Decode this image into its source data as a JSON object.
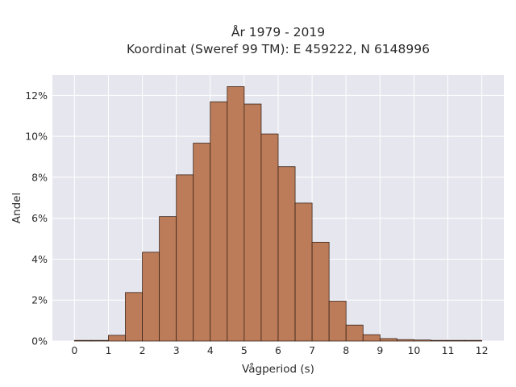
{
  "chart_data": {
    "type": "bar",
    "title_lines": [
      "År 1979 - 2019",
      "Koordinat (Sweref 99 TM): E 459222, N 6148996"
    ],
    "xlabel": "Vågperiod (s)",
    "ylabel": "Andel",
    "x_ticks": [
      "0",
      "1",
      "2",
      "3",
      "4",
      "5",
      "6",
      "7",
      "8",
      "9",
      "10",
      "11",
      "12"
    ],
    "y_ticks": [
      "0%",
      "2%",
      "4%",
      "6%",
      "8%",
      "10%",
      "12%"
    ],
    "xlim": [
      -0.65,
      12.65
    ],
    "ylim": [
      0,
      0.13
    ],
    "bin_width": 0.5,
    "bins": [
      {
        "x_start": 0.0,
        "value": 0.0003
      },
      {
        "x_start": 0.5,
        "value": 0.0
      },
      {
        "x_start": 1.0,
        "value": 0.0028
      },
      {
        "x_start": 1.5,
        "value": 0.0237
      },
      {
        "x_start": 2.0,
        "value": 0.0434
      },
      {
        "x_start": 2.5,
        "value": 0.0608
      },
      {
        "x_start": 3.0,
        "value": 0.0812
      },
      {
        "x_start": 3.5,
        "value": 0.0967
      },
      {
        "x_start": 4.0,
        "value": 0.1169
      },
      {
        "x_start": 4.5,
        "value": 0.1243
      },
      {
        "x_start": 5.0,
        "value": 0.1158
      },
      {
        "x_start": 5.5,
        "value": 0.1012
      },
      {
        "x_start": 6.0,
        "value": 0.0852
      },
      {
        "x_start": 6.5,
        "value": 0.0674
      },
      {
        "x_start": 7.0,
        "value": 0.0483
      },
      {
        "x_start": 7.5,
        "value": 0.0195
      },
      {
        "x_start": 8.0,
        "value": 0.0078
      },
      {
        "x_start": 8.5,
        "value": 0.0031
      },
      {
        "x_start": 9.0,
        "value": 0.0012
      },
      {
        "x_start": 9.5,
        "value": 0.0007
      },
      {
        "x_start": 10.0,
        "value": 0.0005
      },
      {
        "x_start": 10.5,
        "value": 0.0003
      },
      {
        "x_start": 11.0,
        "value": 0.0002
      },
      {
        "x_start": 11.5,
        "value": 0.0002
      }
    ],
    "grid": true,
    "colors": {
      "bar_fill": "#bd7c59",
      "bar_stroke": "#3a2418",
      "plot_background": "#e6e6ef",
      "grid": "#ffffff"
    }
  }
}
